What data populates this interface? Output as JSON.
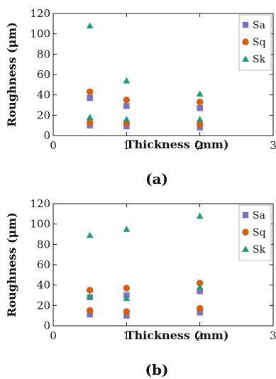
{
  "chart_data": [
    {
      "type": "scatter",
      "caption": "(a)",
      "xlabel": "Thickness (mm)",
      "ylabel": "Roughness (μm)",
      "xlim": [
        0,
        3
      ],
      "ylim": [
        0,
        120
      ],
      "xticks": [
        "0",
        "1",
        "2",
        "3"
      ],
      "yticks": [
        "0",
        "20",
        "40",
        "60",
        "80",
        "100",
        "120"
      ],
      "legend_position": "top-right",
      "grid": false,
      "series": [
        {
          "name": "Sa",
          "marker": "square",
          "color": "#7b6fc7",
          "points": [
            [
              0.5,
              37
            ],
            [
              0.5,
              10
            ],
            [
              1,
              29
            ],
            [
              1,
              9
            ],
            [
              2,
              27
            ],
            [
              2,
              8
            ]
          ]
        },
        {
          "name": "Sq",
          "marker": "circle",
          "color": "#d95f0e",
          "points": [
            [
              0.5,
              43
            ],
            [
              0.5,
              13
            ],
            [
              1,
              35
            ],
            [
              1,
              12
            ],
            [
              2,
              33
            ],
            [
              2,
              11
            ]
          ]
        },
        {
          "name": "Sk",
          "marker": "triangle",
          "color": "#1b9e77",
          "points": [
            [
              0.5,
              108
            ],
            [
              0.5,
              18
            ],
            [
              1,
              54
            ],
            [
              1,
              16
            ],
            [
              2,
              41
            ],
            [
              2,
              16
            ]
          ]
        }
      ]
    },
    {
      "type": "scatter",
      "caption": "(b)",
      "xlabel": "Thickness (mm)",
      "ylabel": "Roughness (μm)",
      "xlim": [
        0,
        3
      ],
      "ylim": [
        0,
        120
      ],
      "xticks": [
        "0",
        "1",
        "2",
        "3"
      ],
      "yticks": [
        "0",
        "20",
        "40",
        "60",
        "80",
        "100",
        "120"
      ],
      "legend_position": "top-right",
      "grid": false,
      "series": [
        {
          "name": "Sa",
          "marker": "square",
          "color": "#7b6fc7",
          "points": [
            [
              0.5,
              28
            ],
            [
              0.5,
              11
            ],
            [
              1,
              30
            ],
            [
              1,
              10
            ],
            [
              2,
              34
            ],
            [
              2,
              13
            ]
          ]
        },
        {
          "name": "Sq",
          "marker": "circle",
          "color": "#d95f0e",
          "points": [
            [
              0.5,
              35
            ],
            [
              0.5,
              15
            ],
            [
              1,
              37
            ],
            [
              1,
              14
            ],
            [
              2,
              42
            ],
            [
              2,
              17
            ]
          ]
        },
        {
          "name": "Sk",
          "marker": "triangle",
          "color": "#1b9e77",
          "points": [
            [
              0.5,
              89
            ],
            [
              0.5,
              29
            ],
            [
              1,
              95
            ],
            [
              1,
              27
            ],
            [
              2,
              108
            ],
            [
              2,
              38
            ]
          ]
        }
      ]
    }
  ]
}
